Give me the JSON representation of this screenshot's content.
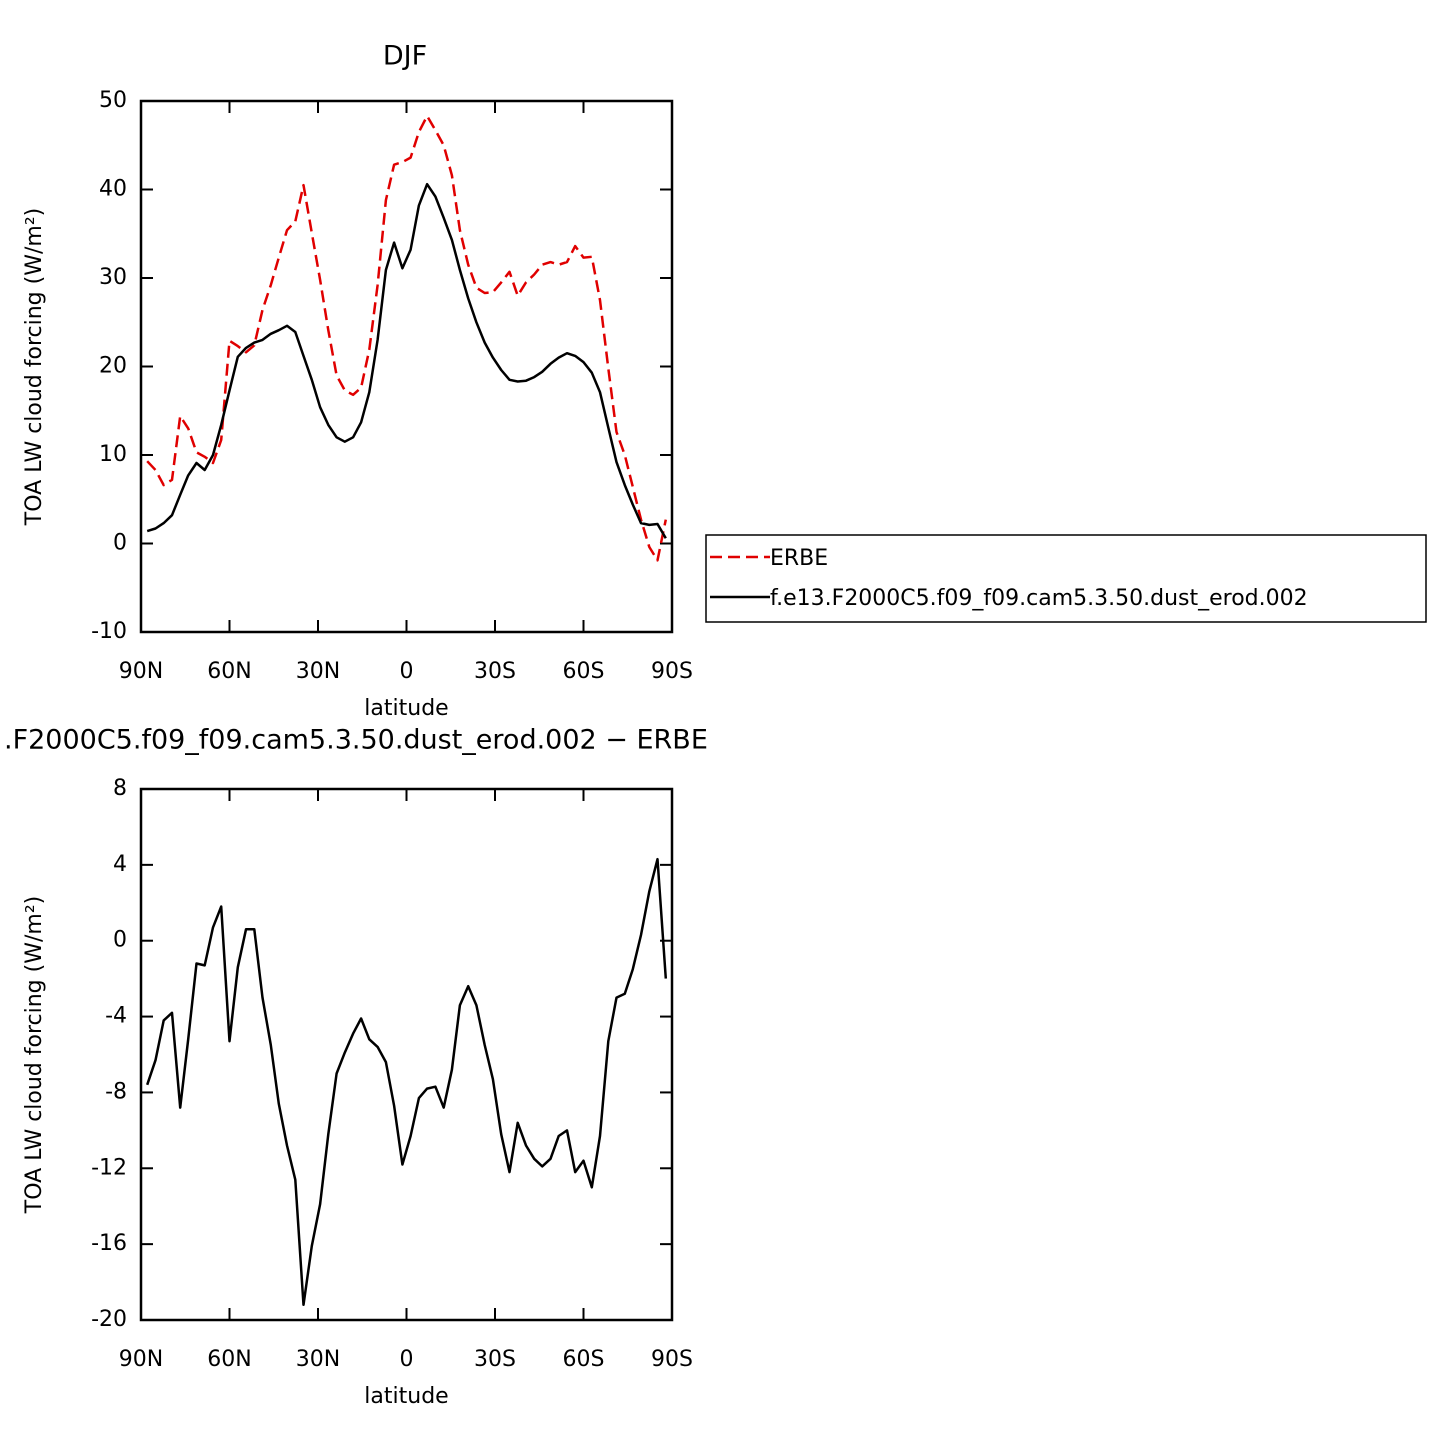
{
  "chart_data": [
    {
      "type": "line",
      "title": "DJF",
      "xlabel": "latitude",
      "ylabel": "TOA LW cloud forcing (W/m²)",
      "x": [
        87.9,
        85.1,
        82.3,
        79.5,
        76.7,
        74.0,
        71.2,
        68.4,
        65.6,
        62.8,
        60.0,
        57.2,
        54.4,
        51.6,
        48.8,
        46.0,
        43.3,
        40.5,
        37.7,
        34.9,
        32.1,
        29.3,
        26.5,
        23.7,
        20.9,
        18.1,
        15.4,
        12.6,
        9.8,
        7.0,
        4.2,
        1.4,
        -1.4,
        -4.2,
        -7.0,
        -9.8,
        -12.6,
        -15.4,
        -18.1,
        -20.9,
        -23.7,
        -26.5,
        -29.3,
        -32.1,
        -34.9,
        -37.7,
        -40.5,
        -43.3,
        -46.0,
        -48.8,
        -51.6,
        -54.4,
        -57.2,
        -60.0,
        -62.8,
        -65.6,
        -68.4,
        -71.2,
        -74.0,
        -76.7,
        -79.5,
        -82.3,
        -85.1,
        -87.9
      ],
      "series": [
        {
          "name": "ERBE",
          "color": "#e00000",
          "dash": true,
          "values": [
            9.3,
            8.3,
            6.6,
            7.2,
            14.4,
            13.0,
            10.3,
            9.8,
            9.1,
            11.7,
            22.9,
            22.3,
            21.6,
            22.4,
            26.4,
            29.2,
            32.3,
            35.4,
            36.4,
            40.5,
            35.1,
            29.8,
            24.1,
            19.0,
            17.3,
            16.8,
            17.6,
            21.9,
            29.2,
            38.8,
            42.8,
            43.1,
            43.6,
            46.5,
            48.3,
            46.7,
            45.0,
            41.6,
            35.4,
            31.5,
            28.9,
            28.3,
            28.4,
            29.5,
            30.7,
            28.0,
            29.5,
            30.4,
            31.5,
            31.8,
            31.5,
            31.8,
            33.6,
            32.3,
            32.4,
            27.5,
            19.8,
            12.6,
            10.0,
            6.4,
            2.7,
            -0.4,
            -1.9,
            2.7
          ]
        },
        {
          "name": "f.e13.F2000C5.f09_f09.cam5.3.50.dust_erod.002",
          "color": "#000000",
          "dash": false,
          "values": [
            1.4,
            1.7,
            2.3,
            3.2,
            5.5,
            7.7,
            9.1,
            8.3,
            10.0,
            13.4,
            17.3,
            21.1,
            22.1,
            22.7,
            23.0,
            23.7,
            24.1,
            24.6,
            23.9,
            21.2,
            18.5,
            15.4,
            13.4,
            12.0,
            11.5,
            12.0,
            13.7,
            17.1,
            23.0,
            30.9,
            34.0,
            31.1,
            33.2,
            38.2,
            40.6,
            39.2,
            36.8,
            34.3,
            30.9,
            27.7,
            25.0,
            22.7,
            21.0,
            19.6,
            18.5,
            18.3,
            18.4,
            18.8,
            19.4,
            20.3,
            21.0,
            21.5,
            21.2,
            20.5,
            19.3,
            17.1,
            13.1,
            9.2,
            6.6,
            4.4,
            2.3,
            2.1,
            2.2,
            0.6
          ]
        }
      ],
      "xlim": [
        90,
        -90
      ],
      "xticks": [
        {
          "value": 90,
          "label": "90N"
        },
        {
          "value": 60,
          "label": "60N"
        },
        {
          "value": 30,
          "label": "30N"
        },
        0,
        {
          "value": -30,
          "label": "30S"
        },
        {
          "value": -60,
          "label": "60S"
        },
        {
          "value": -90,
          "label": "90S"
        }
      ],
      "ylim": [
        -10,
        50
      ],
      "yticks": [
        -10,
        0,
        10,
        20,
        30,
        40,
        50
      ],
      "legend": "right"
    },
    {
      "type": "line",
      "title": ".F2000C5.f09_f09.cam5.3.50.dust_erod.002 − ERBE",
      "xlabel": "latitude",
      "ylabel": "TOA LW cloud forcing (W/m²)",
      "x": [
        87.9,
        85.1,
        82.3,
        79.5,
        76.7,
        74.0,
        71.2,
        68.4,
        65.6,
        62.8,
        60.0,
        57.2,
        54.4,
        51.6,
        48.8,
        46.0,
        43.3,
        40.5,
        37.7,
        34.9,
        32.1,
        29.3,
        26.5,
        23.7,
        20.9,
        18.1,
        15.4,
        12.6,
        9.8,
        7.0,
        4.2,
        1.4,
        -1.4,
        -4.2,
        -7.0,
        -9.8,
        -12.6,
        -15.4,
        -18.1,
        -20.9,
        -23.7,
        -26.5,
        -29.3,
        -32.1,
        -34.9,
        -37.7,
        -40.5,
        -43.3,
        -46.0,
        -48.8,
        -51.6,
        -54.4,
        -57.2,
        -60.0,
        -62.8,
        -65.6,
        -68.4,
        -71.2,
        -74.0,
        -76.7,
        -79.5,
        -82.3,
        -85.1,
        -87.9
      ],
      "color": "#000000",
      "values": [
        -7.6,
        -6.3,
        -4.2,
        -3.8,
        -8.8,
        -5.2,
        -1.2,
        -1.3,
        0.7,
        1.8,
        -5.3,
        -1.4,
        0.6,
        0.6,
        -3.0,
        -5.5,
        -8.6,
        -10.8,
        -12.6,
        -19.2,
        -16.1,
        -13.9,
        -10.2,
        -7.0,
        -5.9,
        -4.9,
        -4.1,
        -5.2,
        -5.6,
        -6.4,
        -8.7,
        -11.8,
        -10.3,
        -8.3,
        -7.8,
        -7.7,
        -8.8,
        -6.8,
        -3.4,
        -2.4,
        -3.4,
        -5.5,
        -7.3,
        -10.2,
        -12.2,
        -9.6,
        -10.8,
        -11.5,
        -11.9,
        -11.5,
        -10.3,
        -10.0,
        -12.2,
        -11.6,
        -13.0,
        -10.3,
        -5.3,
        -3.0,
        -2.8,
        -1.5,
        0.3,
        2.6,
        4.3,
        -2.0
      ],
      "xlim": [
        90,
        -90
      ],
      "xticks": [
        {
          "value": 90,
          "label": "90N"
        },
        {
          "value": 60,
          "label": "60N"
        },
        {
          "value": 30,
          "label": "30N"
        },
        0,
        {
          "value": -30,
          "label": "30S"
        },
        {
          "value": -60,
          "label": "60S"
        },
        {
          "value": -90,
          "label": "90S"
        }
      ],
      "ylim": [
        -20,
        8
      ],
      "yticks": [
        -20,
        -16,
        -12,
        -8,
        -4,
        0,
        4,
        8
      ]
    }
  ]
}
